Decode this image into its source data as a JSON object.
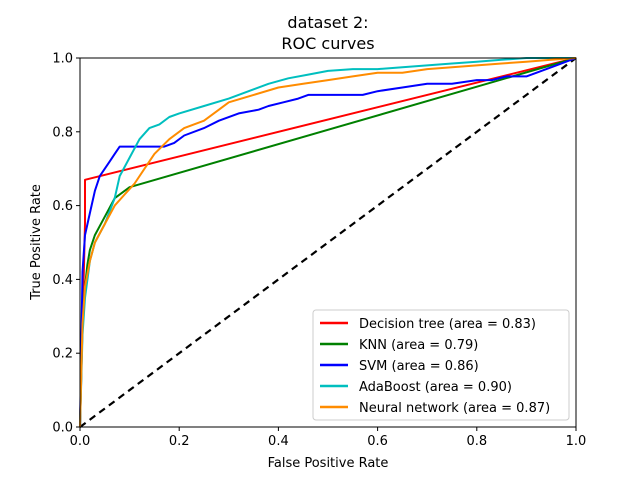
{
  "chart_data": {
    "type": "line",
    "title_line1": "dataset 2:",
    "title_line2": "ROC curves",
    "xlabel": "False Positive Rate",
    "ylabel": "True Positive Rate",
    "xlim": [
      0.0,
      1.0
    ],
    "ylim": [
      0.0,
      1.0
    ],
    "xticks": [
      0.0,
      0.2,
      0.4,
      0.6,
      0.8,
      1.0
    ],
    "yticks": [
      0.0,
      0.2,
      0.4,
      0.6,
      0.8,
      1.0
    ],
    "xtick_labels": [
      "0.0",
      "0.2",
      "0.4",
      "0.6",
      "0.8",
      "1.0"
    ],
    "ytick_labels": [
      "0.0",
      "0.2",
      "0.4",
      "0.6",
      "0.8",
      "1.0"
    ],
    "grid": false,
    "legend_position": "lower-right",
    "diagonal": {
      "x": [
        0,
        1
      ],
      "y": [
        0,
        1
      ],
      "color": "#000000",
      "style": "dashed"
    },
    "series": [
      {
        "name": "Decision tree (area = 0.83)",
        "color": "#ff0000",
        "x": [
          0.0,
          0.01,
          0.01,
          1.0
        ],
        "y": [
          0.0,
          0.55,
          0.67,
          1.0
        ]
      },
      {
        "name": "KNN (area = 0.79)",
        "color": "#008000",
        "x": [
          0.0,
          0.005,
          0.01,
          0.015,
          0.02,
          0.03,
          0.05,
          0.07,
          0.1,
          1.0
        ],
        "y": [
          0.0,
          0.3,
          0.38,
          0.44,
          0.48,
          0.52,
          0.57,
          0.62,
          0.65,
          1.0
        ]
      },
      {
        "name": "SVM (area = 0.86)",
        "color": "#0000ff",
        "x": [
          0.0,
          0.005,
          0.01,
          0.02,
          0.03,
          0.04,
          0.05,
          0.06,
          0.07,
          0.08,
          0.12,
          0.15,
          0.17,
          0.19,
          0.21,
          0.25,
          0.28,
          0.32,
          0.36,
          0.38,
          0.41,
          0.44,
          0.46,
          0.51,
          0.57,
          0.6,
          0.65,
          0.7,
          0.75,
          0.8,
          0.83,
          0.86,
          0.9,
          0.92,
          0.96,
          1.0
        ],
        "y": [
          0.0,
          0.42,
          0.52,
          0.58,
          0.64,
          0.68,
          0.7,
          0.72,
          0.74,
          0.76,
          0.76,
          0.76,
          0.76,
          0.77,
          0.79,
          0.81,
          0.83,
          0.85,
          0.86,
          0.87,
          0.88,
          0.89,
          0.9,
          0.9,
          0.9,
          0.91,
          0.92,
          0.93,
          0.93,
          0.94,
          0.94,
          0.95,
          0.95,
          0.96,
          0.98,
          1.0
        ]
      },
      {
        "name": "AdaBoost (area = 0.90)",
        "color": "#00bfbf",
        "x": [
          0.0,
          0.005,
          0.01,
          0.02,
          0.03,
          0.05,
          0.07,
          0.08,
          0.1,
          0.12,
          0.14,
          0.16,
          0.18,
          0.2,
          0.25,
          0.3,
          0.34,
          0.38,
          0.42,
          0.46,
          0.5,
          0.55,
          0.6,
          0.65,
          0.7,
          0.75,
          0.8,
          0.85,
          0.9,
          0.95,
          1.0
        ],
        "y": [
          0.0,
          0.25,
          0.35,
          0.45,
          0.5,
          0.55,
          0.62,
          0.68,
          0.73,
          0.78,
          0.81,
          0.82,
          0.84,
          0.85,
          0.87,
          0.89,
          0.91,
          0.93,
          0.945,
          0.955,
          0.965,
          0.97,
          0.97,
          0.975,
          0.98,
          0.985,
          0.99,
          0.995,
          1.0,
          1.0,
          1.0
        ]
      },
      {
        "name": "Neural network (area = 0.87)",
        "color": "#ff8c00",
        "x": [
          0.0,
          0.005,
          0.01,
          0.02,
          0.03,
          0.05,
          0.07,
          0.09,
          0.11,
          0.13,
          0.15,
          0.18,
          0.21,
          0.25,
          0.28,
          0.3,
          0.35,
          0.4,
          0.45,
          0.5,
          0.55,
          0.6,
          0.65,
          0.7,
          0.75,
          0.8,
          0.85,
          0.9,
          0.95,
          1.0
        ],
        "y": [
          0.0,
          0.28,
          0.38,
          0.45,
          0.5,
          0.55,
          0.6,
          0.63,
          0.66,
          0.7,
          0.74,
          0.78,
          0.81,
          0.83,
          0.86,
          0.88,
          0.9,
          0.92,
          0.93,
          0.94,
          0.95,
          0.96,
          0.96,
          0.97,
          0.975,
          0.98,
          0.985,
          0.99,
          0.995,
          1.0
        ]
      }
    ]
  }
}
